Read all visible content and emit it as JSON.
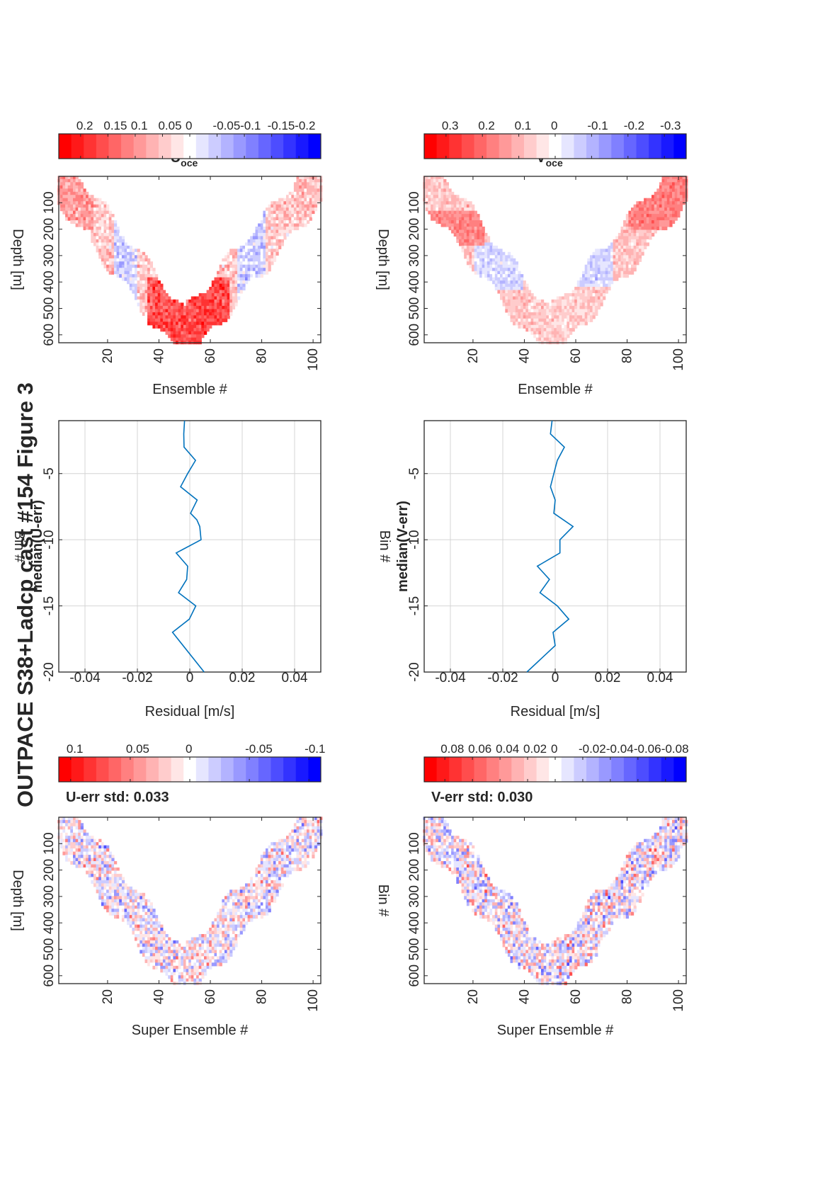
{
  "figure": {
    "title": "OUTPACE S38+Ladcp cast #154  Figure 3"
  },
  "chart_data": [
    {
      "id": "uerr",
      "type": "heatmap",
      "title": "U-err std: 0.033",
      "xlabel": "Super Ensemble #",
      "ylabel": "Depth [m]",
      "xlim": [
        1,
        103
      ],
      "ylim": [
        0,
        630
      ],
      "xticks": [
        "20",
        "40",
        "60",
        "80",
        "100"
      ],
      "yticks": [
        "100",
        "200",
        "300",
        "400",
        "500",
        "600"
      ],
      "colorbar": {
        "range": [
          -0.11,
          0.11
        ],
        "ticks": [
          {
            "value": 0.1,
            "label": "0.1"
          },
          {
            "value": 0.05,
            "label": "0.05"
          },
          {
            "value": 0,
            "label": "0"
          },
          {
            "value": -0.05,
            "label": "-0.05"
          },
          {
            "value": -0.1,
            "label": "-0.1"
          }
        ]
      },
      "colormap": {
        "positive": "#ff0000",
        "zero": "#ffffff",
        "negative": "#0000ff",
        "steps": 21
      },
      "profile": {
        "down_ensembles": [
          1,
          50
        ],
        "bottom_depth_m": 610,
        "band_width_ensembles": 14
      }
    },
    {
      "id": "median_u",
      "type": "line",
      "title": "median(U-err)",
      "xlabel": "Residual [m/s]",
      "ylabel": "Bin #",
      "xlim": [
        -0.05,
        0.05
      ],
      "ylim": [
        -1,
        -20
      ],
      "xticks": [
        "-0.04",
        "-0.02",
        "0",
        "0.02",
        "0.04"
      ],
      "yticks": [
        "-5",
        "-10",
        "-15",
        "-20"
      ],
      "grid": true,
      "color": "#0072bd",
      "series": [
        {
          "x": [
            0.0003,
            0.0028,
            -0.0035,
            -0.0008,
            0.0022,
            -0.0022,
            -0.0023,
            -0.002,
            0.0043,
            0.0038,
            0.0027,
            -0.0066,
            -0.0002,
            0.0023,
            -0.0043,
            -0.0012,
            -0.0008,
            -0.0052,
            0.0055
          ],
          "y": [
            -8,
            -7,
            -6,
            -5,
            -4,
            -3,
            -2,
            -1,
            -10,
            -9,
            -8.5,
            -17,
            -16,
            -15,
            -14,
            -13,
            -12,
            -11,
            -20
          ]
        }
      ]
    },
    {
      "id": "uoce",
      "type": "heatmap",
      "title": "U",
      "title_subscript": "oce",
      "xlabel": "Ensemble #",
      "ylabel": "Depth [m]",
      "xlim": [
        1,
        103
      ],
      "ylim": [
        0,
        630
      ],
      "xticks": [
        "20",
        "40",
        "60",
        "80",
        "100"
      ],
      "yticks": [
        "100",
        "200",
        "300",
        "400",
        "500",
        "600"
      ],
      "colorbar": {
        "range": [
          -0.24,
          0.24
        ],
        "ticks": [
          {
            "value": 0.2,
            "label": "0.2"
          },
          {
            "value": 0.15,
            "label": "0.15"
          },
          {
            "value": 0.1,
            "label": "0.1"
          },
          {
            "value": 0.05,
            "label": "0.05"
          },
          {
            "value": 0,
            "label": "0"
          },
          {
            "value": -0.05,
            "label": "-0.05"
          },
          {
            "value": -0.1,
            "label": "-0.1"
          },
          {
            "value": -0.15,
            "label": "-0.15"
          },
          {
            "value": -0.2,
            "label": "-0.2"
          }
        ]
      },
      "colormap": {
        "positive": "#ff0000",
        "zero": "#ffffff",
        "negative": "#0000ff",
        "steps": 21
      },
      "profile": {
        "down_ensembles": [
          1,
          50
        ],
        "bottom_depth_m": 610,
        "band_width_ensembles": 14
      }
    },
    {
      "id": "verr",
      "type": "heatmap",
      "title": "V-err std: 0.030",
      "xlabel": "Super Ensemble #",
      "ylabel": "Bin #",
      "xlim": [
        1,
        103
      ],
      "ylim": [
        0,
        630
      ],
      "xticks": [
        "20",
        "40",
        "60",
        "80",
        "100"
      ],
      "yticks": [
        "100",
        "200",
        "300",
        "400",
        "500",
        "600"
      ],
      "colorbar": {
        "range": [
          -0.095,
          0.095
        ],
        "ticks": [
          {
            "value": 0.08,
            "label": "0.08"
          },
          {
            "value": 0.06,
            "label": "0.06"
          },
          {
            "value": 0.04,
            "label": "0.04"
          },
          {
            "value": 0.02,
            "label": "0.02"
          },
          {
            "value": 0,
            "label": "0"
          },
          {
            "value": -0.02,
            "label": "-0.02"
          },
          {
            "value": -0.04,
            "label": "-0.04"
          },
          {
            "value": -0.06,
            "label": "-0.06"
          },
          {
            "value": -0.08,
            "label": "-0.08"
          }
        ]
      },
      "colormap": {
        "positive": "#ff0000",
        "zero": "#ffffff",
        "negative": "#0000ff",
        "steps": 21
      },
      "profile": {
        "down_ensembles": [
          1,
          50
        ],
        "bottom_depth_m": 610,
        "band_width_ensembles": 14
      }
    },
    {
      "id": "median_v",
      "type": "line",
      "title": "median(V-err)",
      "xlabel": "Residual [m/s]",
      "ylabel": "Bin #",
      "xlim": [
        -0.05,
        0.05
      ],
      "ylim": [
        -1,
        -20
      ],
      "xticks": [
        "-0.04",
        "-0.02",
        "0",
        "0.02",
        "0.04"
      ],
      "yticks": [
        "-5",
        "-10",
        "-15",
        "-20"
      ],
      "grid": true,
      "color": "#0072bd",
      "series": [
        {
          "x": [
            -0.0005,
            0.0,
            -0.0018,
            -0.0005,
            0.0008,
            0.0035,
            -0.0018,
            -0.0012,
            0.0018,
            0.0068,
            0.0,
            -0.0008,
            0.0052,
            0.0008,
            -0.0058,
            -0.0022,
            -0.0068,
            0.0018,
            -0.0108
          ],
          "y": [
            -8,
            -7,
            -6,
            -5,
            -4,
            -3,
            -2,
            -1,
            -10,
            -9,
            -18,
            -17,
            -16,
            -15,
            -14,
            -13,
            -12,
            -11,
            -20
          ]
        }
      ]
    },
    {
      "id": "voce",
      "type": "heatmap",
      "title": "V",
      "title_subscript": "oce",
      "xlabel": "Ensemble #",
      "ylabel": "Depth [m]",
      "xlim": [
        1,
        103
      ],
      "ylim": [
        0,
        630
      ],
      "xticks": [
        "20",
        "40",
        "60",
        "80",
        "100"
      ],
      "yticks": [
        "100",
        "200",
        "300",
        "400",
        "500",
        "600"
      ],
      "colorbar": {
        "range": [
          -0.36,
          0.36
        ],
        "ticks": [
          {
            "value": 0.3,
            "label": "0.3"
          },
          {
            "value": 0.2,
            "label": "0.2"
          },
          {
            "value": 0.1,
            "label": "0.1"
          },
          {
            "value": 0,
            "label": "0"
          },
          {
            "value": -0.1,
            "label": "-0.1"
          },
          {
            "value": -0.2,
            "label": "-0.2"
          },
          {
            "value": -0.3,
            "label": "-0.3"
          }
        ]
      },
      "colormap": {
        "positive": "#ff0000",
        "zero": "#ffffff",
        "negative": "#0000ff",
        "steps": 21
      },
      "profile": {
        "down_ensembles": [
          1,
          50
        ],
        "bottom_depth_m": 610,
        "band_width_ensembles": 14
      }
    }
  ]
}
